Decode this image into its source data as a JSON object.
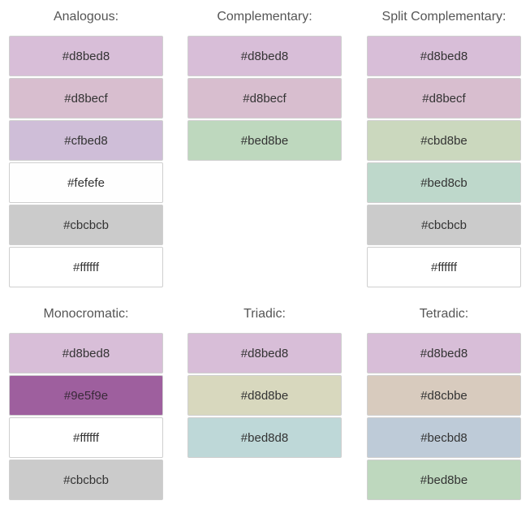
{
  "groups": [
    {
      "key": "analogous",
      "title": "Analogous:",
      "swatches": [
        "#d8bed8",
        "#d8becf",
        "#cfbed8",
        "#fefefe",
        "#cbcbcb",
        "#ffffff"
      ],
      "colors": [
        "#d8bed8",
        "#d8becf",
        "#cfbed8",
        "#fefefe",
        "#cbcbcb",
        "#ffffff"
      ]
    },
    {
      "key": "complementary",
      "title": "Complementary:",
      "swatches": [
        "#d8bed8",
        "#d8becf",
        "#bed8be"
      ],
      "colors": [
        "#d8bed8",
        "#d8becf",
        "#bed8be"
      ]
    },
    {
      "key": "split-complementary",
      "title": "Split Complementary:",
      "swatches": [
        "#d8bed8",
        "#d8becf",
        "#cbd8be",
        "#bed8cb",
        "#cbcbcb",
        "#ffffff"
      ],
      "colors": [
        "#d8bed8",
        "#d8becf",
        "#cbd8be",
        "#bed8cb",
        "#cbcbcb",
        "#ffffff"
      ]
    },
    {
      "key": "monocromatic",
      "title": "Monocromatic:",
      "swatches": [
        "#d8bed8",
        "#9e5f9e",
        "#ffffff",
        "#cbcbcb"
      ],
      "colors": [
        "#d8bed8",
        "#9e5f9e",
        "#ffffff",
        "#cbcbcb"
      ]
    },
    {
      "key": "triadic",
      "title": "Triadic:",
      "swatches": [
        "#d8bed8",
        "#d8d8be",
        "#bed8d8"
      ],
      "colors": [
        "#d8bed8",
        "#d8d8be",
        "#bed8d8"
      ]
    },
    {
      "key": "tetradic",
      "title": "Tetradic:",
      "swatches": [
        "#d8bed8",
        "#d8cbbe",
        "#becbd8",
        "#bed8be"
      ],
      "colors": [
        "#d8bed8",
        "#d8cbbe",
        "#becbd8",
        "#bed8be"
      ]
    }
  ]
}
